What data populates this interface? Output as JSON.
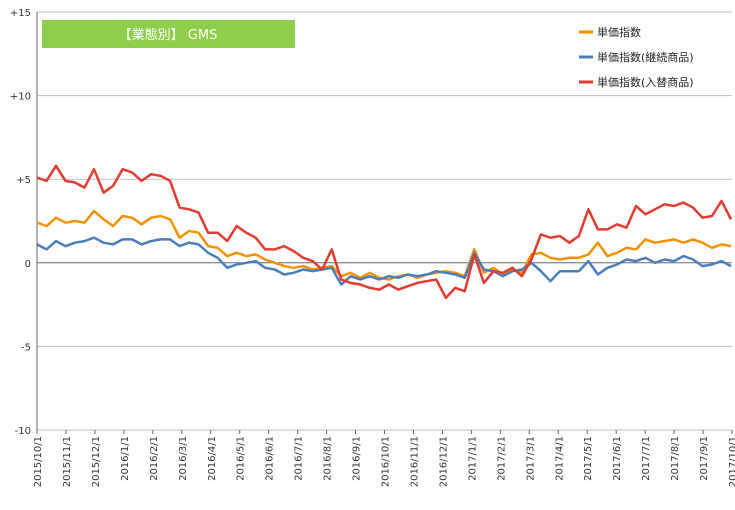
{
  "chart_data": {
    "type": "line",
    "title": "【業態別】 GMS",
    "title_bg_color": "#8fce4b",
    "xlabel": "",
    "ylabel": "",
    "ylim": [
      -10,
      15
    ],
    "y_ticks": [
      -10,
      -5,
      0,
      5,
      10,
      15
    ],
    "y_tick_labels": [
      "-10",
      "-5",
      "0",
      "+5",
      "+10",
      "+15"
    ],
    "grid": true,
    "legend_position": "top-right",
    "x_start": "2015-10-01",
    "x_end": "2017-10-01",
    "x_tick_labels": [
      "2015/10/1",
      "2015/11/1",
      "2015/12/1",
      "2016/1/1",
      "2016/2/1",
      "2016/3/1",
      "2016/4/1",
      "2016/5/1",
      "2016/6/1",
      "2016/7/1",
      "2016/8/1",
      "2016/9/1",
      "2016/10/1",
      "2016/11/1",
      "2016/12/1",
      "2017/1/1",
      "2017/2/1",
      "2017/3/1",
      "2017/4/1",
      "2017/5/1",
      "2017/6/1",
      "2017/7/1",
      "2017/8/1",
      "2017/9/1",
      "2017/10/1"
    ],
    "series": [
      {
        "name": "単価指数",
        "color": "#f39200",
        "points": [
          [
            "2015-10-01",
            2.4
          ],
          [
            "2015-10-11",
            2.2
          ],
          [
            "2015-10-21",
            2.7
          ],
          [
            "2015-10-31",
            2.4
          ],
          [
            "2015-11-10",
            2.5
          ],
          [
            "2015-11-20",
            2.4
          ],
          [
            "2015-11-30",
            3.1
          ],
          [
            "2015-12-10",
            2.6
          ],
          [
            "2015-12-20",
            2.2
          ],
          [
            "2015-12-30",
            2.8
          ],
          [
            "2016-01-09",
            2.7
          ],
          [
            "2016-01-19",
            2.3
          ],
          [
            "2016-01-29",
            2.7
          ],
          [
            "2016-02-08",
            2.8
          ],
          [
            "2016-02-18",
            2.6
          ],
          [
            "2016-02-28",
            1.5
          ],
          [
            "2016-03-09",
            1.9
          ],
          [
            "2016-03-19",
            1.8
          ],
          [
            "2016-03-29",
            1.0
          ],
          [
            "2016-04-08",
            0.9
          ],
          [
            "2016-04-18",
            0.4
          ],
          [
            "2016-04-28",
            0.6
          ],
          [
            "2016-05-08",
            0.4
          ],
          [
            "2016-05-18",
            0.5
          ],
          [
            "2016-05-28",
            0.2
          ],
          [
            "2016-06-07",
            0.0
          ],
          [
            "2016-06-17",
            -0.2
          ],
          [
            "2016-06-27",
            -0.3
          ],
          [
            "2016-07-07",
            -0.2
          ],
          [
            "2016-07-17",
            -0.4
          ],
          [
            "2016-07-27",
            -0.3
          ],
          [
            "2016-08-06",
            -0.2
          ],
          [
            "2016-08-16",
            -0.8
          ],
          [
            "2016-08-26",
            -0.6
          ],
          [
            "2016-09-05",
            -0.9
          ],
          [
            "2016-09-15",
            -0.6
          ],
          [
            "2016-09-25",
            -0.9
          ],
          [
            "2016-10-05",
            -1.0
          ],
          [
            "2016-10-15",
            -0.8
          ],
          [
            "2016-10-25",
            -0.7
          ],
          [
            "2016-11-04",
            -0.9
          ],
          [
            "2016-11-14",
            -0.7
          ],
          [
            "2016-11-24",
            -0.6
          ],
          [
            "2016-12-04",
            -0.5
          ],
          [
            "2016-12-14",
            -0.6
          ],
          [
            "2016-12-24",
            -0.8
          ],
          [
            "2017-01-03",
            0.8
          ],
          [
            "2017-01-13",
            -0.6
          ],
          [
            "2017-01-23",
            -0.3
          ],
          [
            "2017-02-02",
            -0.7
          ],
          [
            "2017-02-12",
            -0.4
          ],
          [
            "2017-02-22",
            -0.6
          ],
          [
            "2017-03-04",
            0.5
          ],
          [
            "2017-03-14",
            0.6
          ],
          [
            "2017-03-24",
            0.3
          ],
          [
            "2017-04-03",
            0.2
          ],
          [
            "2017-04-13",
            0.3
          ],
          [
            "2017-04-23",
            0.3
          ],
          [
            "2017-05-03",
            0.5
          ],
          [
            "2017-05-13",
            1.2
          ],
          [
            "2017-05-23",
            0.4
          ],
          [
            "2017-06-02",
            0.6
          ],
          [
            "2017-06-12",
            0.9
          ],
          [
            "2017-06-22",
            0.8
          ],
          [
            "2017-07-02",
            1.4
          ],
          [
            "2017-07-12",
            1.2
          ],
          [
            "2017-07-22",
            1.3
          ],
          [
            "2017-08-01",
            1.4
          ],
          [
            "2017-08-11",
            1.2
          ],
          [
            "2017-08-21",
            1.4
          ],
          [
            "2017-08-31",
            1.2
          ],
          [
            "2017-09-10",
            0.9
          ],
          [
            "2017-09-20",
            1.1
          ],
          [
            "2017-09-30",
            1.0
          ]
        ]
      },
      {
        "name": "単価指数(継続商品)",
        "color": "#4a7ebb",
        "points": [
          [
            "2015-10-01",
            1.1
          ],
          [
            "2015-10-11",
            0.8
          ],
          [
            "2015-10-21",
            1.3
          ],
          [
            "2015-10-31",
            1.0
          ],
          [
            "2015-11-10",
            1.2
          ],
          [
            "2015-11-20",
            1.3
          ],
          [
            "2015-11-30",
            1.5
          ],
          [
            "2015-12-10",
            1.2
          ],
          [
            "2015-12-20",
            1.1
          ],
          [
            "2015-12-30",
            1.4
          ],
          [
            "2016-01-09",
            1.4
          ],
          [
            "2016-01-19",
            1.1
          ],
          [
            "2016-01-29",
            1.3
          ],
          [
            "2016-02-08",
            1.4
          ],
          [
            "2016-02-18",
            1.4
          ],
          [
            "2016-02-28",
            1.0
          ],
          [
            "2016-03-09",
            1.2
          ],
          [
            "2016-03-19",
            1.1
          ],
          [
            "2016-03-29",
            0.6
          ],
          [
            "2016-04-08",
            0.3
          ],
          [
            "2016-04-18",
            -0.3
          ],
          [
            "2016-04-28",
            -0.1
          ],
          [
            "2016-05-08",
            0.0
          ],
          [
            "2016-05-18",
            0.1
          ],
          [
            "2016-05-28",
            -0.3
          ],
          [
            "2016-06-07",
            -0.4
          ],
          [
            "2016-06-17",
            -0.7
          ],
          [
            "2016-06-27",
            -0.6
          ],
          [
            "2016-07-07",
            -0.4
          ],
          [
            "2016-07-17",
            -0.5
          ],
          [
            "2016-07-27",
            -0.4
          ],
          [
            "2016-08-06",
            -0.3
          ],
          [
            "2016-08-16",
            -1.3
          ],
          [
            "2016-08-26",
            -0.8
          ],
          [
            "2016-09-05",
            -1.0
          ],
          [
            "2016-09-15",
            -0.8
          ],
          [
            "2016-09-25",
            -1.0
          ],
          [
            "2016-10-05",
            -0.8
          ],
          [
            "2016-10-15",
            -0.9
          ],
          [
            "2016-10-25",
            -0.7
          ],
          [
            "2016-11-04",
            -0.8
          ],
          [
            "2016-11-14",
            -0.7
          ],
          [
            "2016-11-24",
            -0.5
          ],
          [
            "2016-12-04",
            -0.6
          ],
          [
            "2016-12-14",
            -0.7
          ],
          [
            "2016-12-24",
            -0.9
          ],
          [
            "2017-01-03",
            0.6
          ],
          [
            "2017-01-13",
            -0.4
          ],
          [
            "2017-01-23",
            -0.5
          ],
          [
            "2017-02-02",
            -0.8
          ],
          [
            "2017-02-12",
            -0.5
          ],
          [
            "2017-02-22",
            -0.4
          ],
          [
            "2017-03-04",
            0.0
          ],
          [
            "2017-03-14",
            -0.5
          ],
          [
            "2017-03-24",
            -1.1
          ],
          [
            "2017-04-03",
            -0.5
          ],
          [
            "2017-04-13",
            -0.5
          ],
          [
            "2017-04-23",
            -0.5
          ],
          [
            "2017-05-03",
            0.1
          ],
          [
            "2017-05-13",
            -0.7
          ],
          [
            "2017-05-23",
            -0.3
          ],
          [
            "2017-06-02",
            -0.1
          ],
          [
            "2017-06-12",
            0.2
          ],
          [
            "2017-06-22",
            0.1
          ],
          [
            "2017-07-02",
            0.3
          ],
          [
            "2017-07-12",
            0.0
          ],
          [
            "2017-07-22",
            0.2
          ],
          [
            "2017-08-01",
            0.1
          ],
          [
            "2017-08-11",
            0.4
          ],
          [
            "2017-08-21",
            0.2
          ],
          [
            "2017-08-31",
            -0.2
          ],
          [
            "2017-09-10",
            -0.1
          ],
          [
            "2017-09-20",
            0.1
          ],
          [
            "2017-09-30",
            -0.2
          ]
        ]
      },
      {
        "name": "単価指数(入替商品)",
        "color": "#e03c31",
        "points": [
          [
            "2015-10-01",
            5.1
          ],
          [
            "2015-10-11",
            4.9
          ],
          [
            "2015-10-21",
            5.8
          ],
          [
            "2015-10-31",
            4.9
          ],
          [
            "2015-11-10",
            4.8
          ],
          [
            "2015-11-20",
            4.5
          ],
          [
            "2015-11-30",
            5.6
          ],
          [
            "2015-12-10",
            4.2
          ],
          [
            "2015-12-20",
            4.6
          ],
          [
            "2015-12-30",
            5.6
          ],
          [
            "2016-01-09",
            5.4
          ],
          [
            "2016-01-19",
            4.9
          ],
          [
            "2016-01-29",
            5.3
          ],
          [
            "2016-02-08",
            5.2
          ],
          [
            "2016-02-18",
            4.9
          ],
          [
            "2016-02-28",
            3.3
          ],
          [
            "2016-03-09",
            3.2
          ],
          [
            "2016-03-19",
            3.0
          ],
          [
            "2016-03-29",
            1.8
          ],
          [
            "2016-04-08",
            1.8
          ],
          [
            "2016-04-18",
            1.3
          ],
          [
            "2016-04-28",
            2.2
          ],
          [
            "2016-05-08",
            1.8
          ],
          [
            "2016-05-18",
            1.5
          ],
          [
            "2016-05-28",
            0.8
          ],
          [
            "2016-06-07",
            0.8
          ],
          [
            "2016-06-17",
            1.0
          ],
          [
            "2016-06-27",
            0.7
          ],
          [
            "2016-07-07",
            0.3
          ],
          [
            "2016-07-17",
            0.1
          ],
          [
            "2016-07-27",
            -0.4
          ],
          [
            "2016-08-06",
            0.8
          ],
          [
            "2016-08-16",
            -1.0
          ],
          [
            "2016-08-26",
            -1.2
          ],
          [
            "2016-09-05",
            -1.3
          ],
          [
            "2016-09-15",
            -1.5
          ],
          [
            "2016-09-25",
            -1.6
          ],
          [
            "2016-10-05",
            -1.3
          ],
          [
            "2016-10-15",
            -1.6
          ],
          [
            "2016-10-25",
            -1.4
          ],
          [
            "2016-11-04",
            -1.2
          ],
          [
            "2016-11-14",
            -1.1
          ],
          [
            "2016-11-24",
            -1.0
          ],
          [
            "2016-12-04",
            -2.1
          ],
          [
            "2016-12-14",
            -1.5
          ],
          [
            "2016-12-24",
            -1.7
          ],
          [
            "2017-01-03",
            0.5
          ],
          [
            "2017-01-13",
            -1.2
          ],
          [
            "2017-01-23",
            -0.5
          ],
          [
            "2017-02-02",
            -0.6
          ],
          [
            "2017-02-12",
            -0.3
          ],
          [
            "2017-02-22",
            -0.8
          ],
          [
            "2017-03-04",
            0.2
          ],
          [
            "2017-03-14",
            1.7
          ],
          [
            "2017-03-24",
            1.5
          ],
          [
            "2017-04-03",
            1.6
          ],
          [
            "2017-04-13",
            1.2
          ],
          [
            "2017-04-23",
            1.6
          ],
          [
            "2017-05-03",
            3.2
          ],
          [
            "2017-05-13",
            2.0
          ],
          [
            "2017-05-23",
            2.0
          ],
          [
            "2017-06-02",
            2.3
          ],
          [
            "2017-06-12",
            2.1
          ],
          [
            "2017-06-22",
            3.4
          ],
          [
            "2017-07-02",
            2.9
          ],
          [
            "2017-07-12",
            3.2
          ],
          [
            "2017-07-22",
            3.5
          ],
          [
            "2017-08-01",
            3.4
          ],
          [
            "2017-08-11",
            3.6
          ],
          [
            "2017-08-21",
            3.3
          ],
          [
            "2017-08-31",
            2.7
          ],
          [
            "2017-09-10",
            2.8
          ],
          [
            "2017-09-20",
            3.7
          ],
          [
            "2017-09-30",
            2.6
          ]
        ]
      }
    ]
  }
}
